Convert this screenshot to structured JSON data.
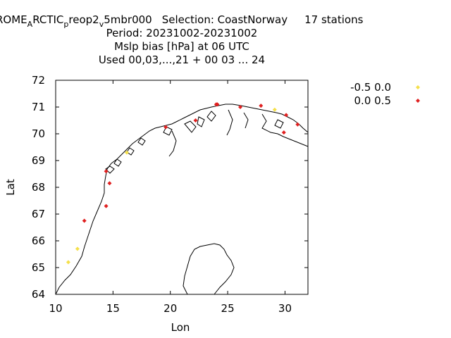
{
  "chart_data": {
    "type": "scatter",
    "title": {
      "line1_parts": {
        "a": "ROME",
        "sub1": "A",
        "b": "RCTIC",
        "sub2": "p",
        "c": "reop2",
        "sub3": "v",
        "d": "5mbr000",
        "selection": "Selection: CoastNorway",
        "stations": "17 stations"
      },
      "line2": "Period: 20231002-20231002",
      "line3": "Mslp bias [hPa] at  06 UTC",
      "line4": "Used  00,03,...,21 + 00 03 ... 24"
    },
    "xlabel": "Lon",
    "ylabel": "Lat",
    "xlim": [
      10,
      32
    ],
    "ylim": [
      64,
      72
    ],
    "xticks": [
      "10",
      "15",
      "20",
      "25",
      "30"
    ],
    "yticks": [
      "64",
      "65",
      "66",
      "67",
      "68",
      "69",
      "70",
      "71",
      "72"
    ],
    "legend_position": "top-right",
    "series": [
      {
        "name": "-0.5 0.0",
        "color": "#f5e04a",
        "marker": "diamond",
        "points": [
          [
            11.1,
            65.2
          ],
          [
            11.9,
            65.7
          ],
          [
            16.2,
            69.3
          ],
          [
            29.1,
            70.9
          ]
        ]
      },
      {
        "name": "0.0 0.5",
        "color": "#e02020",
        "marker": "diamond",
        "points": [
          [
            12.5,
            66.75
          ],
          [
            14.4,
            67.3
          ],
          [
            14.7,
            68.15
          ],
          [
            14.4,
            68.6
          ],
          [
            19.6,
            70.25
          ],
          [
            22.2,
            70.5
          ],
          [
            24.1,
            71.1
          ],
          [
            26.1,
            71.0
          ],
          [
            27.9,
            71.05
          ],
          [
            30.1,
            70.7
          ],
          [
            29.9,
            70.05
          ],
          [
            31.1,
            70.35
          ],
          [
            24.0,
            71.1
          ]
        ]
      }
    ]
  }
}
